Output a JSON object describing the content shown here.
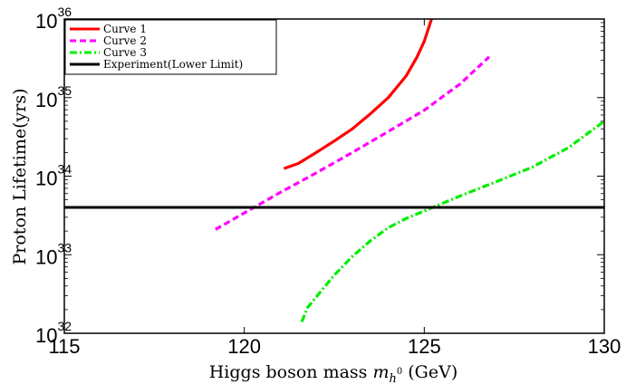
{
  "chart_data": {
    "type": "line",
    "xlabel": "Higgs boson mass m_h⁰ (GeV)",
    "xlabel_parts": {
      "before": "Higgs boson mass ",
      "symbol": "m",
      "subscript": "h",
      "sup": "0",
      "after": " (GeV)"
    },
    "ylabel": "Proton Lifetime(yrs)",
    "xlim": [
      115,
      130
    ],
    "ylim": [
      1e+32,
      1e+36
    ],
    "yscale": "log",
    "x_ticks": [
      {
        "value": 115,
        "label": "115"
      },
      {
        "value": 120,
        "label": "120"
      },
      {
        "value": 125,
        "label": "125"
      },
      {
        "value": 130,
        "label": "130"
      }
    ],
    "y_ticks": [
      {
        "exp": 32,
        "base": "10",
        "sup": "32"
      },
      {
        "exp": 33,
        "base": "10",
        "sup": "33"
      },
      {
        "exp": 34,
        "base": "10",
        "sup": "34"
      },
      {
        "exp": 35,
        "base": "10",
        "sup": "35"
      },
      {
        "exp": 36,
        "base": "10",
        "sup": "36"
      }
    ],
    "grid": false,
    "legend_position": "top-left",
    "series": [
      {
        "name": "Curve 1",
        "color": "#ff0000",
        "style": "solid",
        "points": [
          [
            121.1,
            1.25e+34
          ],
          [
            121.5,
            1.45e+34
          ],
          [
            122.0,
            2e+34
          ],
          [
            122.5,
            2.8e+34
          ],
          [
            123.0,
            4e+34
          ],
          [
            123.5,
            6.2e+34
          ],
          [
            124.0,
            1e+35
          ],
          [
            124.5,
            1.9e+35
          ],
          [
            124.8,
            3.3e+35
          ],
          [
            125.0,
            5.2e+35
          ],
          [
            125.2,
            1e+36
          ]
        ]
      },
      {
        "name": "Curve 2",
        "color": "#ff00ff",
        "style": "dashed",
        "points": [
          [
            119.2,
            2.1e+33
          ],
          [
            120.0,
            3.4e+33
          ],
          [
            121.0,
            6.2e+33
          ],
          [
            122.0,
            1.1e+34
          ],
          [
            123.0,
            2e+34
          ],
          [
            124.0,
            3.7e+34
          ],
          [
            125.0,
            6.9e+34
          ],
          [
            126.0,
            1.5e+35
          ],
          [
            126.8,
            3.3e+35
          ]
        ]
      },
      {
        "name": "Curve 3",
        "color": "#00ee00",
        "style": "dashdot",
        "points": [
          [
            121.6,
            1.4e+32
          ],
          [
            121.75,
            2.1e+32
          ],
          [
            122.0,
            2.9e+32
          ],
          [
            122.5,
            5.5e+32
          ],
          [
            123.0,
            9.5e+32
          ],
          [
            123.5,
            1.5e+33
          ],
          [
            124.0,
            2.2e+33
          ],
          [
            124.5,
            2.9e+33
          ],
          [
            125.0,
            3.6e+33
          ],
          [
            126.0,
            5.6e+33
          ],
          [
            127.0,
            8.5e+33
          ],
          [
            128.0,
            1.3e+34
          ],
          [
            129.0,
            2.3e+34
          ],
          [
            130.0,
            5e+34
          ]
        ]
      },
      {
        "name": "Experiment(Lower Limit)",
        "color": "#000000",
        "style": "solid",
        "points": [
          [
            115,
            4e+33
          ],
          [
            130,
            4e+33
          ]
        ]
      }
    ]
  }
}
